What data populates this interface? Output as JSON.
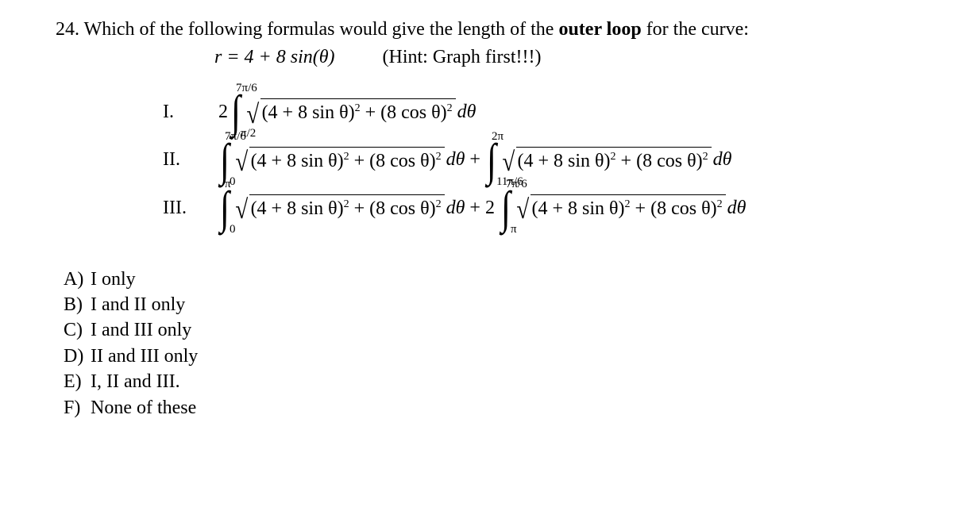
{
  "question": {
    "number": "24.",
    "text_part1": "Which of the following formulas would give the length of the",
    "bold": "outer loop",
    "text_part2": "for the curve:",
    "equation": "r = 4 + 8 sin(θ)",
    "hint": "(Hint: Graph first!!!)"
  },
  "radicand_text": "(4 + 8 sin θ)",
  "sq": "2",
  "plus_inner": " + (8 cos θ)",
  "dtheta": "dθ",
  "options": {
    "I": {
      "numeral": "I.",
      "coef": "2",
      "int1_upper": "7π/6",
      "int1_lower": "π/2"
    },
    "II": {
      "numeral": "II.",
      "int1_upper": "7π/6",
      "int1_lower": "0",
      "plus": "+",
      "int2_upper": "2π",
      "int2_lower": "11π/6"
    },
    "III": {
      "numeral": "III.",
      "int1_upper": "π",
      "int1_lower": "0",
      "plus_coef": "+ 2",
      "int2_upper": "7π/6",
      "int2_lower": "π"
    }
  },
  "answers": {
    "A": {
      "letter": "A)",
      "text": "I only"
    },
    "B": {
      "letter": "B)",
      "text": "I and II only"
    },
    "C": {
      "letter": "C)",
      "text": "I and III only"
    },
    "D": {
      "letter": "D)",
      "text": "II and III only"
    },
    "E": {
      "letter": "E)",
      "text": "I, II and III."
    },
    "F": {
      "letter": "F)",
      "text": "None of these"
    }
  }
}
